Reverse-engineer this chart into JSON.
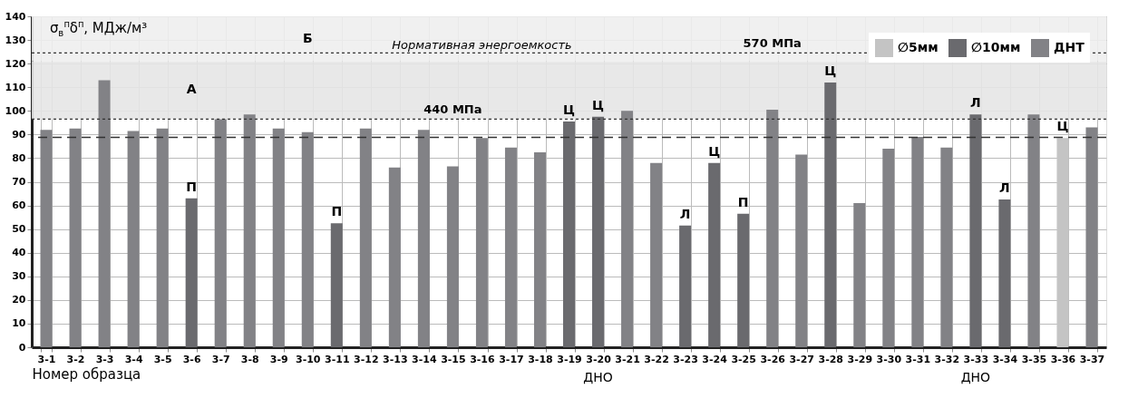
{
  "chart_data": {
    "type": "bar",
    "xlabel": "Номер образца",
    "ylabel": "σ$_{в}$$^{п}$δ$^{п}$, МДж/м³",
    "categories": [
      "3-1",
      "3-2",
      "3-3",
      "3-4",
      "3-5",
      "3-6",
      "3-7",
      "3-8",
      "3-9",
      "3-10",
      "3-11",
      "3-12",
      "3-13",
      "3-14",
      "3-15",
      "3-16",
      "3-17",
      "3-18",
      "3-19",
      "3-20",
      "3-21",
      "3-22",
      "3-23",
      "3-24",
      "3-25",
      "3-26",
      "3-27",
      "3-28",
      "3-29",
      "3-30",
      "3-31",
      "3-32",
      "3-33",
      "3-34",
      "3-35",
      "3-36",
      "3-37"
    ],
    "series": [
      {
        "name": "∅5мм",
        "color": "#c4c4c4",
        "values": [
          null,
          null,
          null,
          null,
          null,
          null,
          null,
          null,
          null,
          null,
          null,
          null,
          null,
          null,
          null,
          null,
          null,
          null,
          null,
          null,
          null,
          null,
          null,
          null,
          null,
          null,
          null,
          null,
          null,
          null,
          null,
          null,
          null,
          null,
          null,
          88.5,
          null
        ],
        "value_labels": [
          null,
          null,
          null,
          null,
          null,
          null,
          null,
          null,
          null,
          null,
          null,
          null,
          null,
          null,
          null,
          null,
          null,
          null,
          null,
          null,
          null,
          null,
          null,
          null,
          null,
          null,
          null,
          null,
          null,
          null,
          null,
          null,
          null,
          null,
          null,
          "Ц",
          null
        ]
      },
      {
        "name": "∅10мм",
        "color": "#6a6a6e",
        "values": [
          null,
          null,
          null,
          null,
          null,
          63,
          null,
          null,
          null,
          null,
          52.5,
          null,
          null,
          null,
          null,
          null,
          null,
          null,
          95.5,
          97.5,
          null,
          null,
          51.5,
          78,
          56.5,
          null,
          null,
          112,
          null,
          null,
          null,
          null,
          98.5,
          62.5,
          null,
          null,
          null
        ],
        "value_labels": [
          null,
          null,
          null,
          null,
          null,
          "П",
          null,
          null,
          null,
          null,
          "П",
          null,
          null,
          null,
          null,
          null,
          null,
          null,
          "Ц",
          "Ц",
          null,
          null,
          "Л",
          "Ц",
          "П",
          null,
          null,
          "Ц",
          null,
          null,
          null,
          null,
          "Л",
          "Л",
          null,
          null,
          null
        ]
      },
      {
        "name": "ДНТ",
        "color": "#828286",
        "values": [
          92,
          92.5,
          113,
          91.5,
          92.5,
          null,
          96.5,
          98.5,
          92.5,
          91,
          null,
          92.5,
          76,
          92,
          76.5,
          88.5,
          84.5,
          82.5,
          null,
          null,
          100,
          78,
          null,
          null,
          null,
          100.5,
          81.5,
          null,
          61,
          84,
          89,
          84.5,
          null,
          null,
          98.5,
          null,
          93
        ]
      }
    ],
    "ylim": [
      0,
      140
    ],
    "yticks": [
      0,
      10,
      20,
      30,
      40,
      50,
      60,
      70,
      80,
      90,
      100,
      110,
      120,
      130,
      140
    ],
    "grid": true,
    "legend": "top right",
    "bands": [
      {
        "axis": "y",
        "from": 96.5,
        "to": 121,
        "label": "А",
        "color": "#e6e6e6"
      },
      {
        "axis": "y",
        "from": 121,
        "to": 140,
        "label": "Б",
        "color": "#eeeeee"
      }
    ],
    "ref_lines": [
      {
        "axis": "y",
        "value": 96.5,
        "label": "440 МПа",
        "line_style": "dotted"
      },
      {
        "axis": "y",
        "value": 124.5,
        "label": "570 МПа",
        "line_style": "dotted"
      },
      {
        "axis": "y",
        "value": 88.8,
        "line_style": "dashed"
      }
    ],
    "annotations": [
      {
        "text": "Нормативная энергоемкость",
        "x": "3-16",
        "y": 124.5
      },
      "ДНО",
      "ДНО"
    ]
  }
}
